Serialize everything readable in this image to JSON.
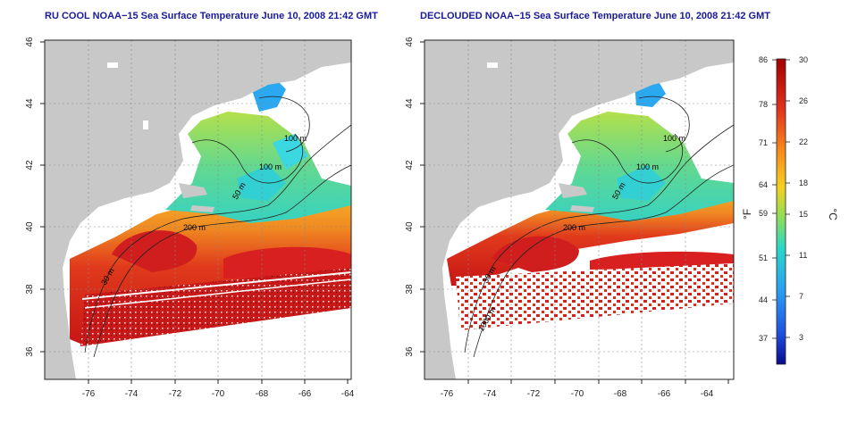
{
  "panels": [
    {
      "title": "RU COOL NOAA−15 Sea Surface Temperature June 10, 2008 21:42 GMT"
    },
    {
      "title": "DECLOUDED NOAA−15 Sea Surface Temperature June 10, 2008 21:42 GMT"
    }
  ],
  "axes": {
    "lon_ticks": [
      "-76",
      "-74",
      "-72",
      "-70",
      "-68",
      "-66",
      "-64"
    ],
    "lat_ticks": [
      "36",
      "38",
      "40",
      "42",
      "44",
      "46"
    ]
  },
  "contour_labels": {
    "m100a": "100 m",
    "m100b": "100 m",
    "m50": "50 m",
    "m200": "200 m",
    "m30": "30 m",
    "m1000": "1000 m"
  },
  "colorbar": {
    "f_unit": "°F",
    "c_unit": "°C",
    "f_ticks": [
      "86",
      "78",
      "71",
      "64",
      "59",
      "51",
      "44",
      "37"
    ],
    "c_ticks": [
      "30",
      "26",
      "22",
      "18",
      "15",
      "11",
      "7",
      "3"
    ]
  },
  "colors": {
    "land": "#c8c8c8",
    "title": "#1a1a9a",
    "warm": "#d21e1e",
    "cool": "#28c8f0"
  }
}
